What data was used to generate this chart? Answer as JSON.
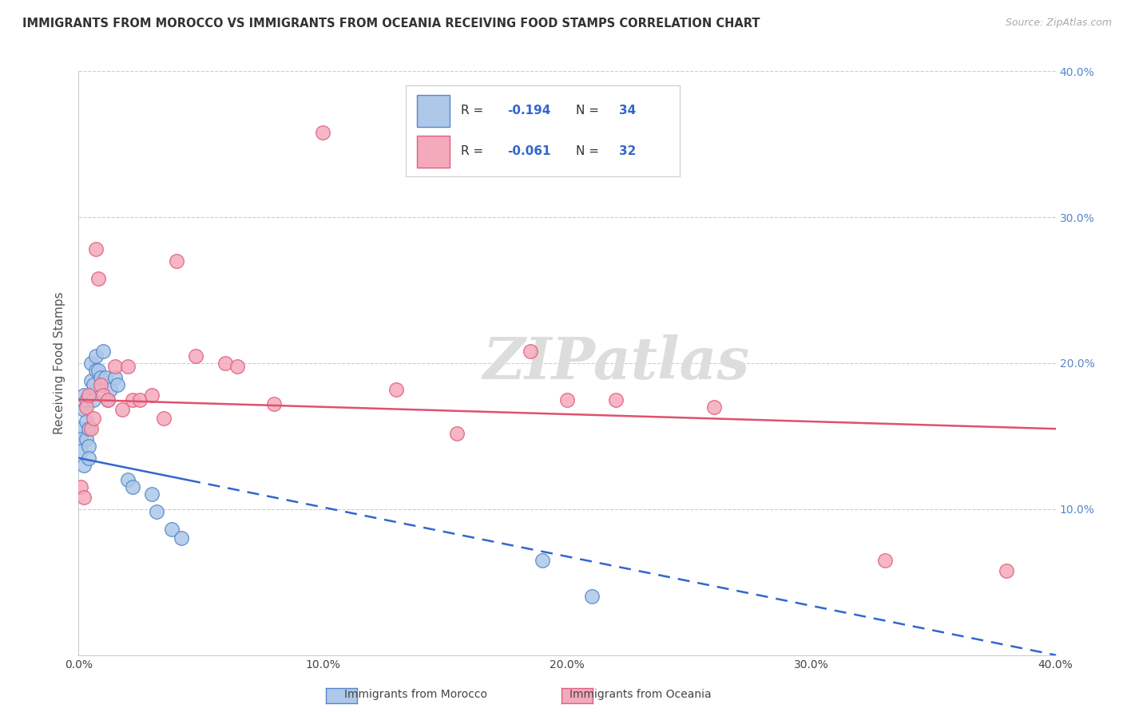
{
  "title": "IMMIGRANTS FROM MOROCCO VS IMMIGRANTS FROM OCEANIA RECEIVING FOOD STAMPS CORRELATION CHART",
  "source": "Source: ZipAtlas.com",
  "ylabel": "Receiving Food Stamps",
  "xlim": [
    0.0,
    0.4
  ],
  "ylim": [
    0.0,
    0.4
  ],
  "xticks": [
    0.0,
    0.1,
    0.2,
    0.3,
    0.4
  ],
  "yticks": [
    0.1,
    0.2,
    0.3,
    0.4
  ],
  "xtick_labels": [
    "0.0%",
    "10.0%",
    "20.0%",
    "30.0%",
    "40.0%"
  ],
  "right_ytick_labels": [
    "10.0%",
    "20.0%",
    "30.0%",
    "40.0%"
  ],
  "morocco_color": "#adc8e8",
  "morocco_edge": "#5588cc",
  "oceania_color": "#f5aabb",
  "oceania_edge": "#e06080",
  "line_morocco_color": "#3366cc",
  "line_oceania_color": "#e05070",
  "r_morocco": -0.194,
  "n_morocco": 34,
  "r_oceania": -0.061,
  "n_oceania": 32,
  "morocco_x": [
    0.001,
    0.001,
    0.001,
    0.002,
    0.002,
    0.002,
    0.003,
    0.003,
    0.003,
    0.004,
    0.004,
    0.004,
    0.005,
    0.005,
    0.006,
    0.006,
    0.007,
    0.007,
    0.008,
    0.009,
    0.01,
    0.011,
    0.012,
    0.013,
    0.015,
    0.016,
    0.02,
    0.022,
    0.03,
    0.032,
    0.038,
    0.042,
    0.19,
    0.21
  ],
  "morocco_y": [
    0.155,
    0.148,
    0.14,
    0.178,
    0.168,
    0.13,
    0.175,
    0.16,
    0.148,
    0.155,
    0.143,
    0.135,
    0.2,
    0.188,
    0.185,
    0.175,
    0.205,
    0.195,
    0.195,
    0.19,
    0.208,
    0.19,
    0.175,
    0.182,
    0.19,
    0.185,
    0.12,
    0.115,
    0.11,
    0.098,
    0.086,
    0.08,
    0.065,
    0.04
  ],
  "oceania_x": [
    0.001,
    0.002,
    0.003,
    0.004,
    0.005,
    0.006,
    0.007,
    0.008,
    0.009,
    0.01,
    0.012,
    0.015,
    0.018,
    0.02,
    0.022,
    0.025,
    0.03,
    0.035,
    0.04,
    0.048,
    0.06,
    0.065,
    0.08,
    0.1,
    0.13,
    0.155,
    0.185,
    0.2,
    0.22,
    0.26,
    0.33,
    0.38
  ],
  "oceania_y": [
    0.115,
    0.108,
    0.17,
    0.178,
    0.155,
    0.162,
    0.278,
    0.258,
    0.185,
    0.178,
    0.175,
    0.198,
    0.168,
    0.198,
    0.175,
    0.175,
    0.178,
    0.162,
    0.27,
    0.205,
    0.2,
    0.198,
    0.172,
    0.358,
    0.182,
    0.152,
    0.208,
    0.175,
    0.175,
    0.17,
    0.065,
    0.058
  ],
  "watermark": "ZIPatlas",
  "background_color": "#ffffff",
  "grid_color": "#cccccc",
  "morocco_line_solid_end": 0.045,
  "line_morocco_intercept": 0.135,
  "line_morocco_slope": -0.3375,
  "line_oceania_intercept": 0.175,
  "line_oceania_slope": -0.05
}
